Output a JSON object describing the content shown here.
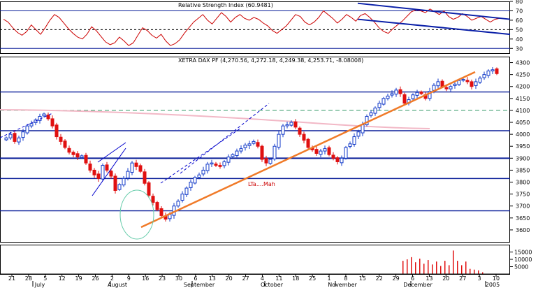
{
  "colors": {
    "background": "#ffffff",
    "frame": "#000000",
    "grid": "#000000",
    "level_line": "#0a1f99",
    "dashed_level": "#339966",
    "trend_channel": "#0000cc",
    "orange_trend": "#f07a28",
    "pink_line": "#f2b8c6",
    "rsi_line": "#cc0000",
    "rsi_channel": "#0a1fa8",
    "candle_up": "#1038c8",
    "candle_down": "#e01010",
    "volume_bar": "#e01010",
    "ellipse": "#66ccaa"
  },
  "chart_data": [
    {
      "type": "line",
      "title": "Relative Strength Index (60.9481)",
      "ylim": [
        25,
        80
      ],
      "yticks": [
        "80",
        "70",
        "60",
        "50",
        "40",
        "30"
      ],
      "reference_lines": [
        70,
        50,
        30
      ],
      "series": [
        {
          "values": [
            61,
            58,
            52,
            47,
            44,
            48,
            55,
            50,
            45,
            52,
            60,
            66,
            63,
            57,
            51,
            46,
            42,
            40,
            45,
            53,
            49,
            43,
            37,
            34,
            36,
            42,
            38,
            33,
            36,
            44,
            52,
            49,
            44,
            41,
            45,
            38,
            33,
            35,
            39,
            46,
            52,
            58,
            62,
            66,
            60,
            56,
            62,
            68,
            64,
            58,
            63,
            66,
            62,
            60,
            63,
            61,
            57,
            54,
            49,
            46,
            50,
            54,
            60,
            66,
            64,
            58,
            55,
            58,
            63,
            70,
            66,
            62,
            57,
            61,
            66,
            63,
            59,
            65,
            67,
            63,
            58,
            52,
            48,
            46,
            51,
            55,
            59,
            64,
            69,
            71,
            70,
            68,
            72,
            69,
            66,
            70,
            64,
            61,
            63,
            67,
            64,
            60,
            62,
            64,
            61,
            58,
            61,
            62
          ]
        }
      ],
      "channel": {
        "upper": [
          [
            102,
            78
          ],
          [
            148,
            61
          ]
        ],
        "lower": [
          [
            102,
            61
          ],
          [
            148,
            45
          ]
        ]
      }
    },
    {
      "type": "candlestick",
      "title": "XETRA DAX PF (4,270.56, 4,272.18, 4,249.38, 4,253.71, -8.08008)",
      "ylim": [
        3550,
        4325
      ],
      "yticks": [
        "4300",
        "4250",
        "4200",
        "4150",
        "4100",
        "4050",
        "4000",
        "3950",
        "3900",
        "3850",
        "3800",
        "3750",
        "3700",
        "3650",
        "3600"
      ],
      "x_dates": [
        "21",
        "28",
        "5",
        "12",
        "19",
        "26",
        "2",
        "9",
        "16",
        "23",
        "30",
        "6",
        "13",
        "20",
        "27",
        "4",
        "11",
        "18",
        "25",
        "1",
        "8",
        "15",
        "22",
        "29",
        "6",
        "13",
        "20",
        "27",
        "3",
        "10"
      ],
      "x_months": [
        "July",
        "August",
        "September",
        "October",
        "November",
        "December",
        "2005"
      ],
      "closes": [
        3985,
        4000,
        3970,
        3985,
        4010,
        4035,
        4045,
        4060,
        4075,
        4085,
        4065,
        4035,
        3990,
        3970,
        3945,
        3925,
        3915,
        3905,
        3910,
        3880,
        3850,
        3830,
        3815,
        3870,
        3850,
        3825,
        3765,
        3790,
        3815,
        3845,
        3880,
        3865,
        3845,
        3795,
        3745,
        3715,
        3685,
        3660,
        3645,
        3665,
        3700,
        3720,
        3750,
        3775,
        3800,
        3820,
        3830,
        3850,
        3875,
        3880,
        3870,
        3865,
        3885,
        3905,
        3915,
        3930,
        3940,
        3955,
        3960,
        3970,
        3950,
        3895,
        3880,
        3895,
        3950,
        4000,
        4035,
        4040,
        4050,
        4030,
        4000,
        3975,
        3945,
        3935,
        3920,
        3930,
        3940,
        3915,
        3900,
        3885,
        3900,
        3945,
        3960,
        3990,
        4010,
        4040,
        4075,
        4090,
        4110,
        4130,
        4150,
        4160,
        4170,
        4185,
        4170,
        4130,
        4145,
        4165,
        4175,
        4170,
        4150,
        4180,
        4205,
        4220,
        4200,
        4190,
        4200,
        4210,
        4225,
        4230,
        4220,
        4200,
        4220,
        4235,
        4250,
        4265,
        4270,
        4254
      ],
      "horizontal_levels": [
        4177,
        4015,
        3900,
        3815,
        3680
      ],
      "dashed_levels": [
        4100
      ],
      "annotations": [
        "LTa....Mah"
      ]
    },
    {
      "type": "bar",
      "yticks": [
        "15000",
        "10000",
        "5000"
      ],
      "ylim": [
        0,
        20000
      ],
      "values": [
        9000,
        10000,
        11500,
        8000,
        10500,
        7000,
        9500,
        6500,
        8500,
        5500,
        9000,
        6000,
        16000,
        9000,
        6000,
        8500,
        3500,
        3000,
        2500,
        1200
      ]
    }
  ]
}
